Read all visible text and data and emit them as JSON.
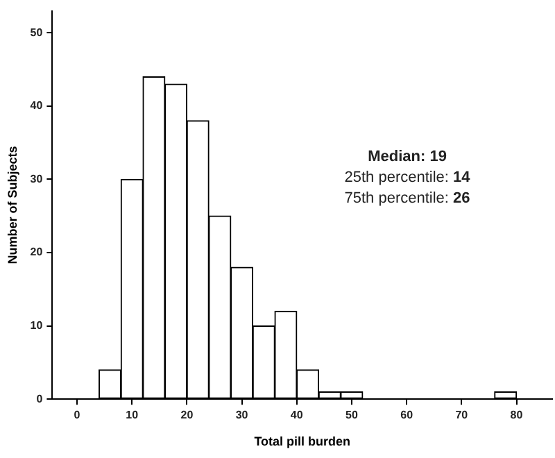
{
  "chart_data": {
    "type": "histogram",
    "xlabel": "Total pill burden",
    "ylabel": "Number of Subjects",
    "bins": [
      4,
      8,
      12,
      16,
      20,
      24,
      28,
      32,
      36,
      40,
      44,
      48,
      52,
      56,
      60,
      64,
      68,
      72,
      76,
      80
    ],
    "values": [
      4,
      30,
      44,
      43,
      38,
      25,
      18,
      10,
      12,
      4,
      1,
      1,
      0,
      0,
      0,
      0,
      0,
      0,
      1
    ],
    "color": "#ffffff",
    "xlim": [
      -4.5,
      86.5
    ],
    "xticks": [
      0,
      10,
      20,
      30,
      40,
      50,
      60,
      70,
      80
    ],
    "ylim": [
      0,
      53
    ],
    "yticks": [
      0,
      10,
      20,
      30,
      40,
      50
    ],
    "grid": false,
    "legend": false,
    "annotations": [
      "Median: 19",
      "25th percentile: 14",
      "75th percentile: 26"
    ]
  }
}
